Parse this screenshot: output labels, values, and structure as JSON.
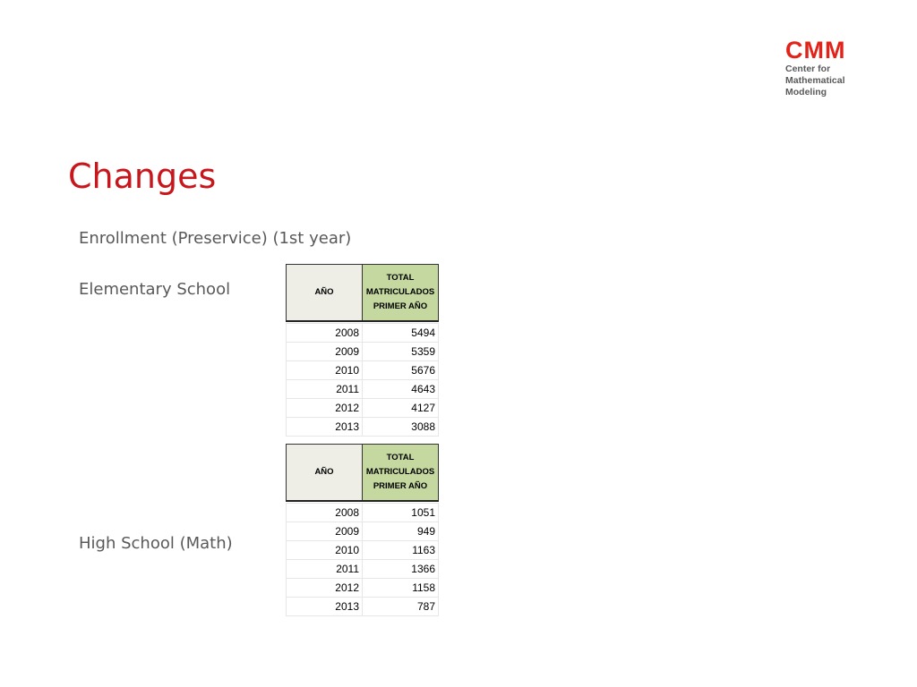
{
  "logo": {
    "mark": "CMM",
    "lines": [
      "Center for",
      "Mathematical",
      "Modeling"
    ]
  },
  "title": "Changes",
  "labels": {
    "enrollment": "Enrollment (Preservice) (1st year)",
    "elementary": "Elementary School",
    "high_school": "High School (Math)"
  },
  "tables": [
    {
      "header_year": "AÑO",
      "header_total": [
        "TOTAL",
        "MATRICULADOS",
        "PRIMER AÑO"
      ],
      "rows": [
        [
          "2008",
          "5494"
        ],
        [
          "2009",
          "5359"
        ],
        [
          "2010",
          "5676"
        ],
        [
          "2011",
          "4643"
        ],
        [
          "2012",
          "4127"
        ],
        [
          "2013",
          "3088"
        ]
      ]
    },
    {
      "header_year": "AÑO",
      "header_total": [
        "TOTAL",
        "MATRICULADOS",
        "PRIMER AÑO"
      ],
      "rows": [
        [
          "2008",
          "1051"
        ],
        [
          "2009",
          "949"
        ],
        [
          "2010",
          "1163"
        ],
        [
          "2011",
          "1366"
        ],
        [
          "2012",
          "1158"
        ],
        [
          "2013",
          "787"
        ]
      ]
    }
  ],
  "colors": {
    "title": "#c8161d",
    "logo": "#e2231a",
    "header_total_bg": "#c5d89f",
    "header_year_bg": "#eeeee6"
  }
}
